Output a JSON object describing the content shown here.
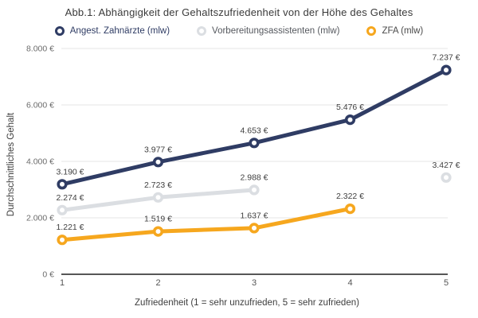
{
  "title": "Abb.1: Abhängigkeit der Gehaltszufriedenheit von der Höhe des Gehaltes",
  "chart_data": {
    "type": "line",
    "title": "Abb.1: Abhängigkeit der Gehaltszufriedenheit von der Höhe des Gehaltes",
    "xlabel": "Zufriedenheit (1 = sehr unzufrieden, 5 = sehr zufrieden)",
    "ylabel": "Durchschnittliches Gehalt",
    "x": [
      1,
      2,
      3,
      4,
      5
    ],
    "ylim": [
      0,
      8000
    ],
    "grid": "horizontal",
    "legend_position": "top",
    "gridline_color": "#E4E4E6",
    "axis_line_color": "#3F3F3F",
    "y_ticks": [
      {
        "value": 0,
        "label": "0 €"
      },
      {
        "value": 2000,
        "label": "2.000 €"
      },
      {
        "value": 4000,
        "label": "4.000 €"
      },
      {
        "value": 6000,
        "label": "6.000 €"
      },
      {
        "value": 8000,
        "label": "8.000 €"
      }
    ],
    "series": [
      {
        "name": "Angest. Zahnärzte (mlw)",
        "color": "#2F3C64",
        "label_color": "#2F3C64",
        "values": [
          3190,
          3977,
          4653,
          5476,
          7237
        ],
        "labels": [
          "3.190 €",
          "3.977 €",
          "4.653 €",
          "5.476 €",
          "7.237 €"
        ]
      },
      {
        "name": "Vorbereitungsassistenten (mlw)",
        "color": "#DBDEE2",
        "label_color": "#55585E",
        "values": [
          2274,
          2723,
          2988,
          null,
          3427
        ],
        "labels": [
          "2.274 €",
          "2.723 €",
          "2.988 €",
          null,
          "3.427 €"
        ]
      },
      {
        "name": "ZFA (mlw)",
        "color": "#F6A71E",
        "label_color": "#4A4A4A",
        "values": [
          1221,
          1519,
          1637,
          2322,
          null
        ],
        "labels": [
          "1.221 €",
          "1.519 €",
          "1.637 €",
          "2.322 €",
          null
        ]
      }
    ]
  }
}
